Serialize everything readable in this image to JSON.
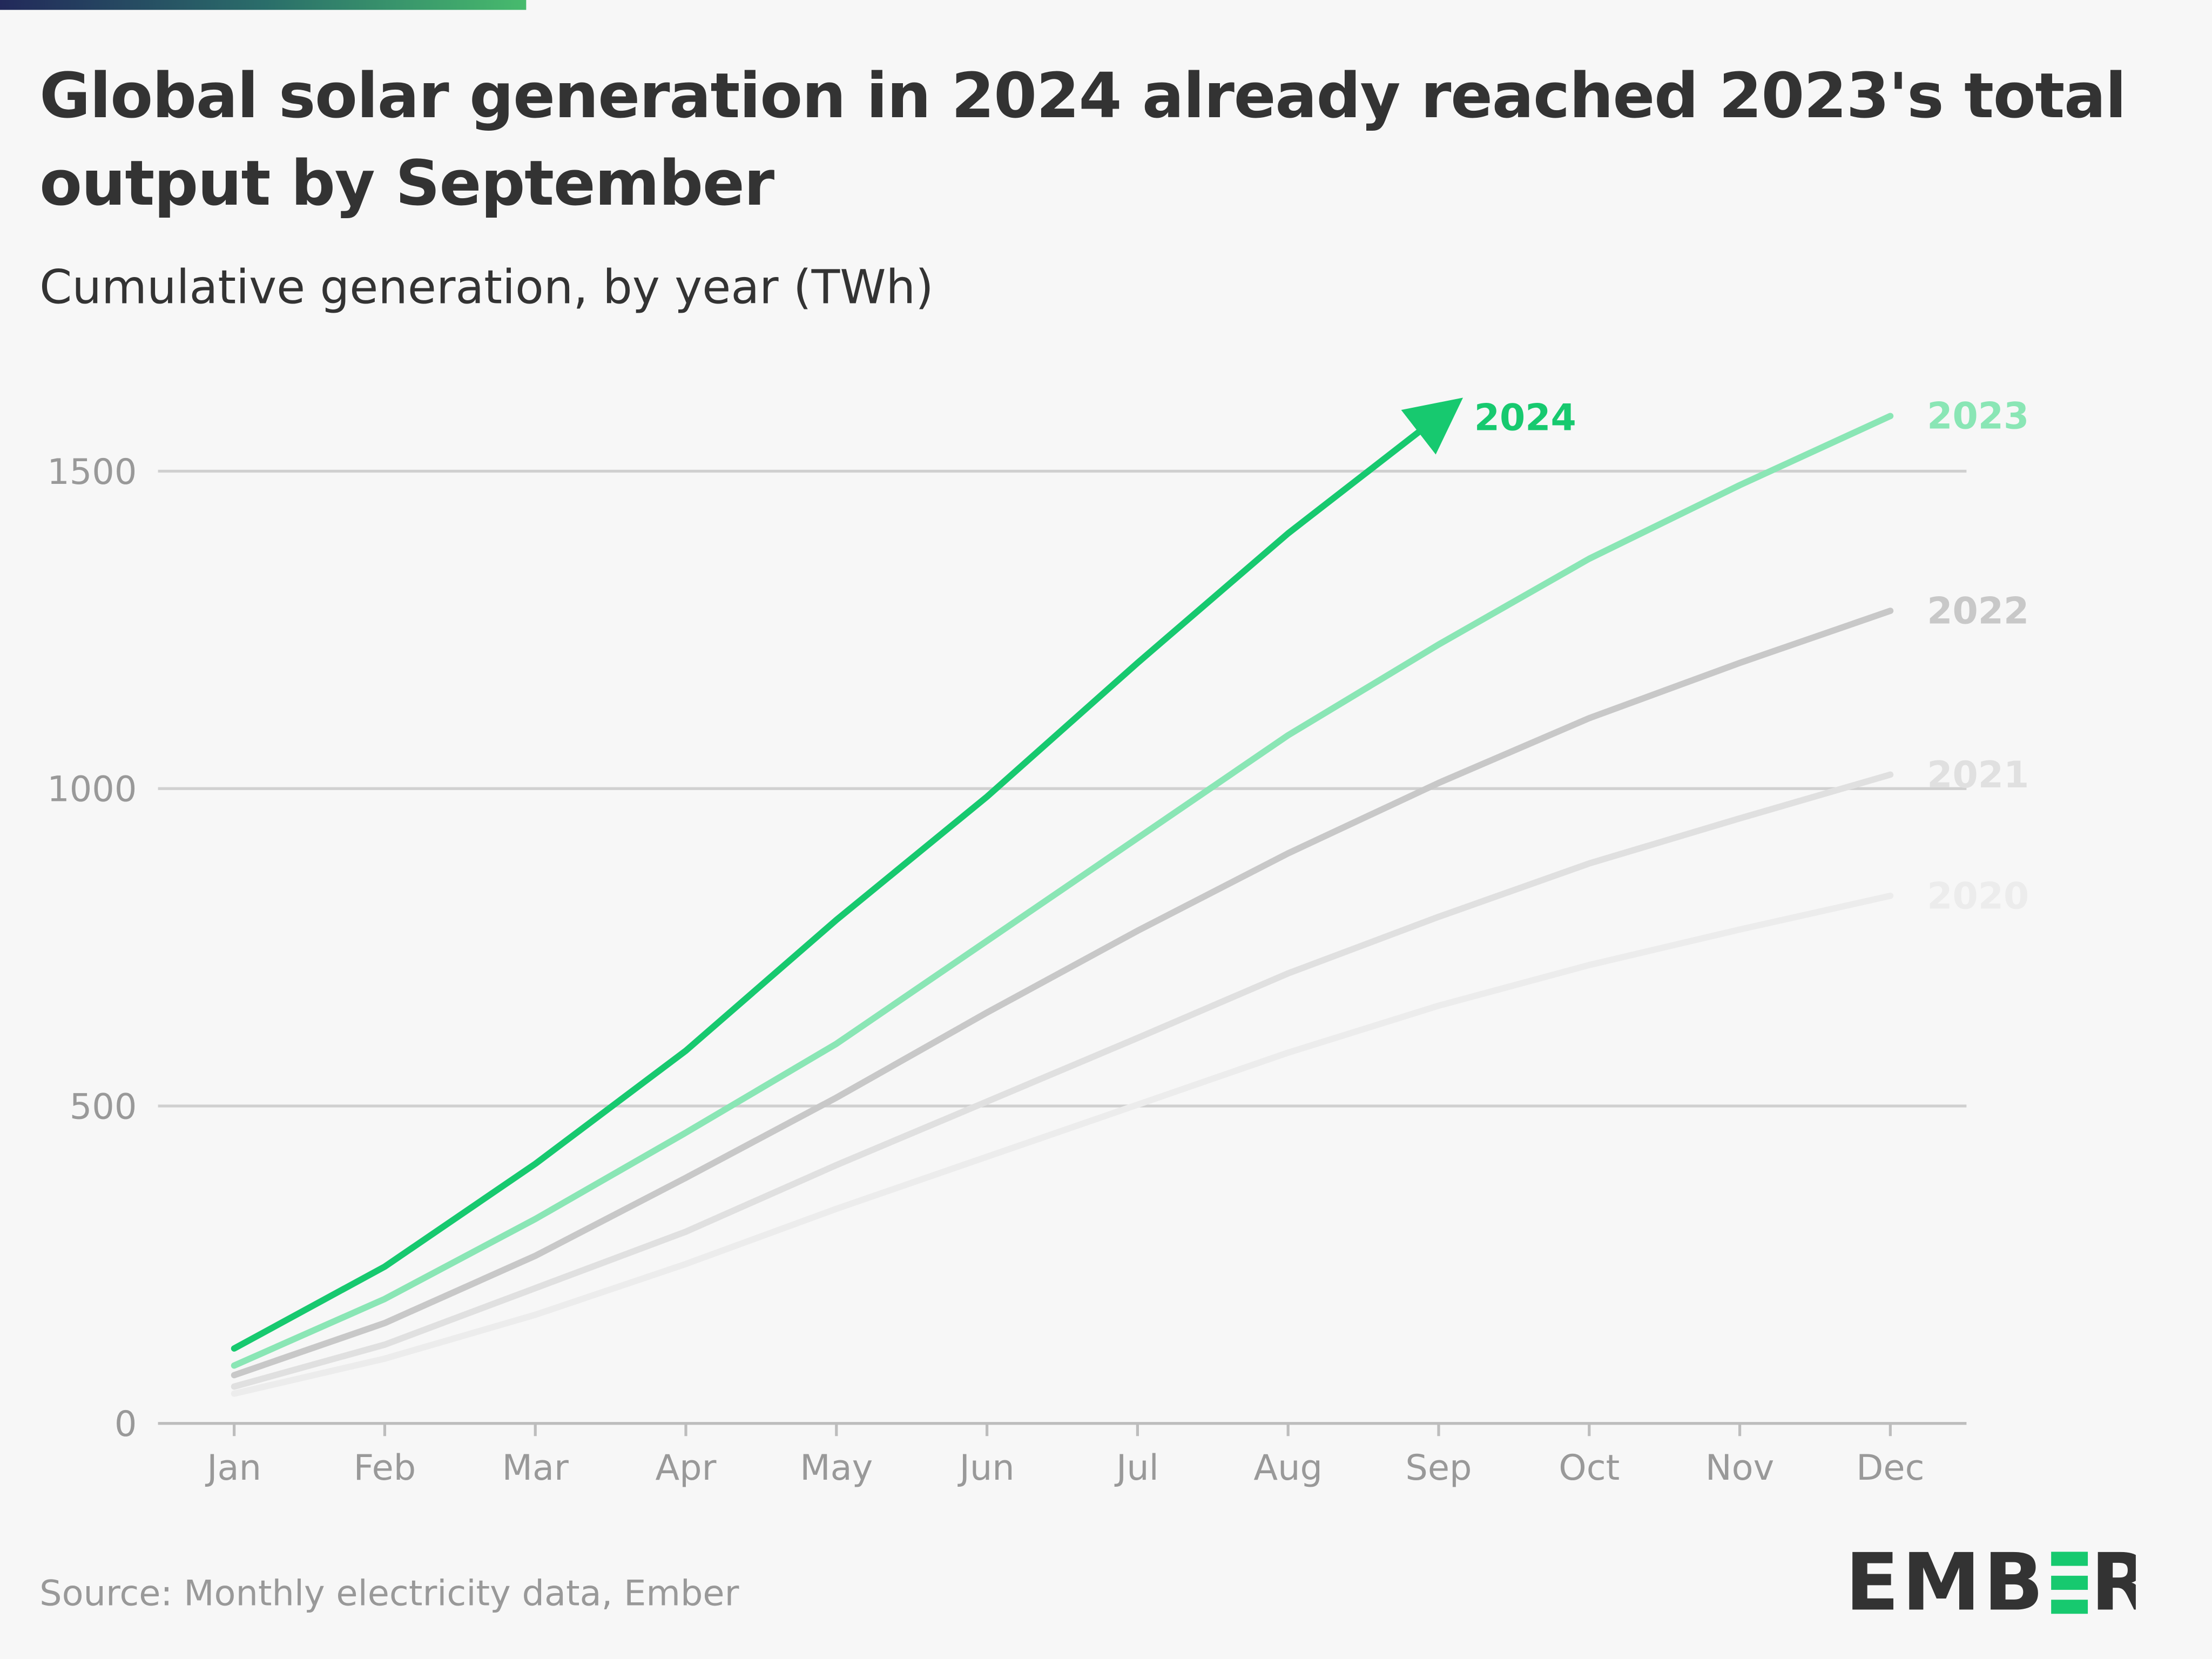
{
  "title": "Global solar generation in 2024 already reached 2023's total output by September",
  "subtitle": "Cumulative generation, by year (TWh)",
  "source": "Source: Monthly electricity data, Ember",
  "logo_text": "EMBER",
  "colors": {
    "accent": "#17c96f",
    "text": "#333333",
    "grid": "#d0d0d0"
  },
  "chart_data": {
    "type": "line",
    "title": "Global solar generation in 2024 already reached 2023's total output by September",
    "subtitle": "Cumulative generation, by year (TWh)",
    "xlabel": "",
    "ylabel": "TWh",
    "ylim": [
      0,
      1650
    ],
    "yticks": [
      0,
      500,
      1000,
      1500
    ],
    "ytick_labels": [
      "0",
      "500",
      "1000",
      "1500"
    ],
    "grid": true,
    "legend": "direct labels at line ends",
    "categories": [
      "Jan",
      "Feb",
      "Mar",
      "Apr",
      "May",
      "Jun",
      "Jul",
      "Aug",
      "Sep",
      "Oct",
      "Nov",
      "Dec"
    ],
    "series": [
      {
        "name": "2020",
        "color": "#ececec",
        "values": [
          47,
          102,
          171,
          251,
          338,
          420,
          502,
          584,
          658,
          722,
          778,
          831
        ]
      },
      {
        "name": "2021",
        "color": "#e0e0e0",
        "values": [
          58,
          124,
          213,
          302,
          407,
          507,
          607,
          709,
          798,
          882,
          953,
          1022
        ]
      },
      {
        "name": "2022",
        "color": "#c8c8c8",
        "values": [
          76,
          158,
          264,
          387,
          513,
          647,
          776,
          898,
          1009,
          1111,
          1198,
          1280
        ]
      },
      {
        "name": "2023",
        "color": "#8ae6b5",
        "values": [
          91,
          196,
          322,
          458,
          598,
          760,
          922,
          1084,
          1227,
          1362,
          1478,
          1587
        ]
      },
      {
        "name": "2024",
        "color": "#17c96f",
        "values": [
          118,
          247,
          409,
          587,
          793,
          987,
          1198,
          1402,
          1590,
          null,
          null,
          null
        ],
        "arrow": true
      }
    ]
  }
}
